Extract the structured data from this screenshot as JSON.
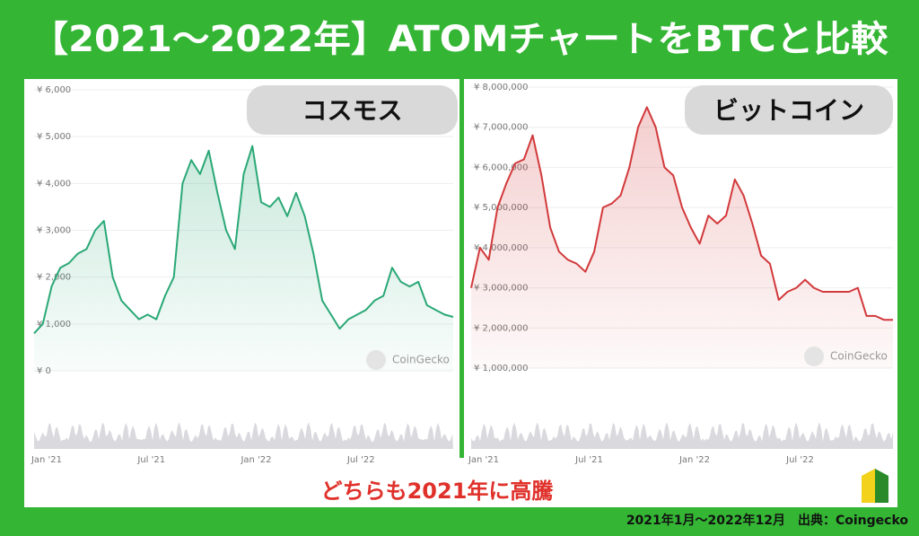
{
  "header": {
    "title": "【2021～2022年】ATOMチャートをBTCと比較"
  },
  "chart_data": [
    {
      "type": "line",
      "title": "コスモス",
      "watermark": "CoinGecko",
      "color": "#2aa876",
      "categories": [
        "Jan '21",
        null,
        null,
        null,
        null,
        null,
        null,
        null,
        null,
        null,
        null,
        null,
        "Jul '21",
        null,
        null,
        null,
        null,
        null,
        null,
        null,
        null,
        null,
        null,
        null,
        "Jan '22",
        null,
        null,
        null,
        null,
        null,
        null,
        null,
        null,
        null,
        null,
        null,
        "Jul '22",
        null,
        null,
        null,
        null,
        null,
        null,
        null,
        null,
        null,
        null,
        null,
        null
      ],
      "values": [
        800,
        1000,
        1800,
        2200,
        2300,
        2500,
        2600,
        3000,
        3200,
        2000,
        1500,
        1300,
        1100,
        1200,
        1100,
        1600,
        2000,
        4000,
        4500,
        4200,
        4700,
        3800,
        3000,
        2600,
        4200,
        4800,
        3600,
        3500,
        3700,
        3300,
        3800,
        3300,
        2500,
        1500,
        1200,
        900,
        1100,
        1200,
        1300,
        1500,
        1600,
        2200,
        1900,
        1800,
        1900,
        1400,
        1300,
        1200,
        1150
      ],
      "ylim": [
        0,
        6000
      ],
      "yticks": [
        {
          "value": 0,
          "label": "¥ 0"
        },
        {
          "value": 1000,
          "label": "¥ 1,000"
        },
        {
          "value": 2000,
          "label": "¥ 2,000"
        },
        {
          "value": 3000,
          "label": "¥ 3,000"
        },
        {
          "value": 4000,
          "label": "¥ 4,000"
        },
        {
          "value": 5000,
          "label": "¥ 5,000"
        },
        {
          "value": 6000,
          "label": "¥ 6,000"
        }
      ],
      "grid": true
    },
    {
      "type": "line",
      "title": "ビットコイン",
      "watermark": "CoinGecko",
      "color": "#d2393b",
      "categories": [
        "Jan '21",
        null,
        null,
        null,
        null,
        null,
        null,
        null,
        null,
        null,
        null,
        null,
        "Jul '21",
        null,
        null,
        null,
        null,
        null,
        null,
        null,
        null,
        null,
        null,
        null,
        "Jan '22",
        null,
        null,
        null,
        null,
        null,
        null,
        null,
        null,
        null,
        null,
        null,
        "Jul '22",
        null,
        null,
        null,
        null,
        null,
        null,
        null,
        null,
        null,
        null,
        null,
        null
      ],
      "values": [
        3000000,
        4000000,
        3700000,
        5000000,
        5600000,
        6100000,
        6200000,
        6800000,
        5800000,
        4500000,
        3900000,
        3700000,
        3600000,
        3400000,
        3900000,
        5000000,
        5100000,
        5300000,
        6000000,
        7000000,
        7500000,
        7000000,
        6000000,
        5800000,
        5000000,
        4500000,
        4100000,
        4800000,
        4600000,
        4800000,
        5700000,
        5300000,
        4600000,
        3800000,
        3600000,
        2700000,
        2900000,
        3000000,
        3200000,
        3000000,
        2900000,
        2900000,
        2900000,
        2900000,
        3000000,
        2300000,
        2300000,
        2200000,
        2200000
      ],
      "ylim": [
        1000000,
        8000000
      ],
      "yticks": [
        {
          "value": 1000000,
          "label": "¥ 1,000,000"
        },
        {
          "value": 2000000,
          "label": "¥ 2,000,000"
        },
        {
          "value": 3000000,
          "label": "¥ 3,000,000"
        },
        {
          "value": 4000000,
          "label": "¥ 4,000,000"
        },
        {
          "value": 5000000,
          "label": "¥ 5,000,000"
        },
        {
          "value": 6000000,
          "label": "¥ 6,000,000"
        },
        {
          "value": 7000000,
          "label": "¥ 7,000,000"
        },
        {
          "value": 8000000,
          "label": "¥ 8,000,000"
        }
      ],
      "grid": true
    }
  ],
  "caption": "どちらも2021年に高騰",
  "footer": "2021年1月～2022年12月　出典：Coingecko"
}
